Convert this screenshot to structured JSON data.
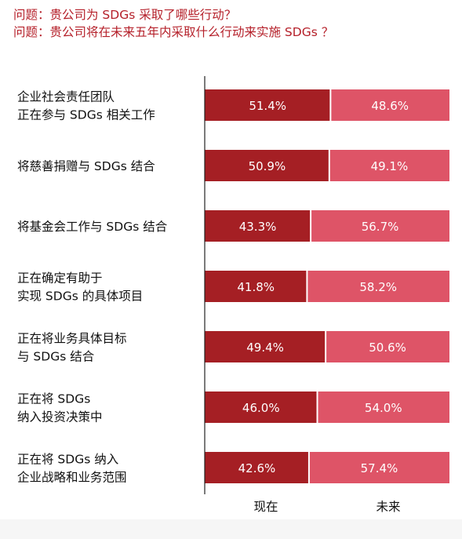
{
  "questions": [
    "问题：贵公司为 SDGs 采取了哪些行动？",
    "问题：贵公司将在未来五年内采取什么行动来实施 SDGs ？"
  ],
  "chart_data": {
    "type": "bar",
    "stacked": true,
    "orientation": "horizontal",
    "percent_stacked": true,
    "categories": [
      [
        "企业社会责任团队",
        "正在参与 SDGs 相关工作"
      ],
      [
        "将慈善捐赠与 SDGs 结合"
      ],
      [
        "将基金会工作与 SDGs 结合"
      ],
      [
        "正在确定有助于",
        "实现 SDGs 的具体项目"
      ],
      [
        "正在将业务具体目标",
        "与 SDGs 结合"
      ],
      [
        "正在将 SDGs",
        "纳入投资决策中"
      ],
      [
        "正在将 SDGs 纳入",
        "企业战略和业务范围"
      ]
    ],
    "series": [
      {
        "name": "现在",
        "color": "#a51f24",
        "values": [
          51.4,
          50.9,
          43.3,
          41.8,
          49.4,
          46.0,
          42.6
        ],
        "labels": [
          "51.4%",
          "50.9%",
          "43.3%",
          "41.8%",
          "49.4%",
          "46.0%",
          "42.6%"
        ]
      },
      {
        "name": "未来",
        "color": "#de5467",
        "values": [
          48.6,
          49.1,
          56.7,
          58.2,
          50.6,
          54.0,
          57.4
        ],
        "labels": [
          "48.6%",
          "49.1%",
          "56.7%",
          "58.2%",
          "50.6%",
          "54.0%",
          "57.4%"
        ]
      }
    ],
    "xlim": [
      0,
      100
    ],
    "axis_labels": [
      "现在",
      "未来"
    ],
    "legend": "none",
    "grid": false
  }
}
